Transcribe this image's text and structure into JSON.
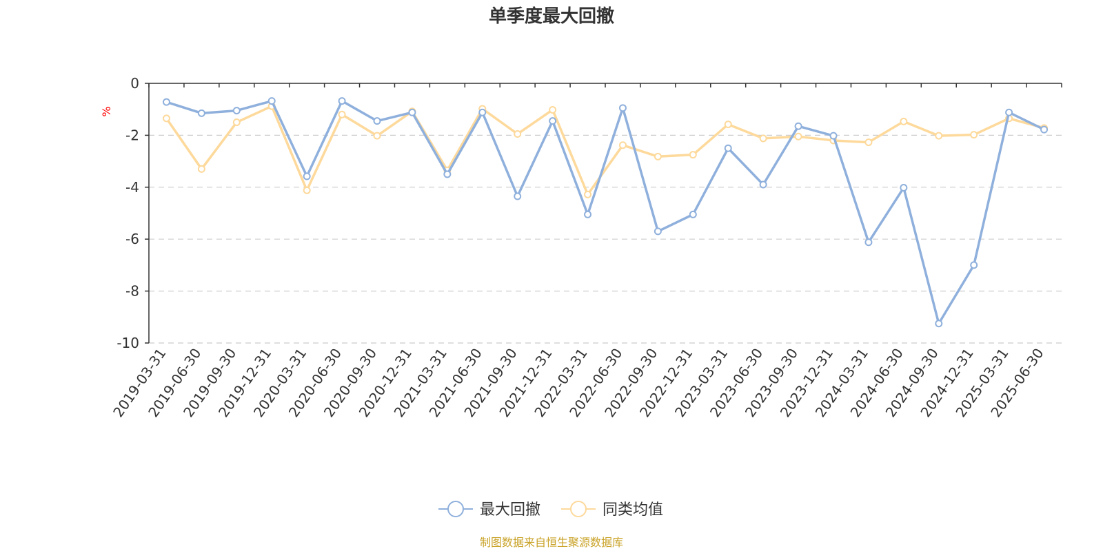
{
  "colors": {
    "series_1": "#8fb0dc",
    "series_2": "#fdd99b",
    "axis": "#333333",
    "grid": "#cccccc",
    "unit": "#ff0000",
    "source": "#c9a227"
  },
  "chart_data": {
    "type": "line",
    "title": "单季度最大回撤",
    "ylabel": "%",
    "xlabel": "",
    "ylim": [
      -10,
      0
    ],
    "yticks": [
      0,
      -2,
      -4,
      -6,
      -8,
      -10
    ],
    "grid": true,
    "legend_position": "bottom",
    "categories": [
      "2019-03-31",
      "2019-06-30",
      "2019-09-30",
      "2019-12-31",
      "2020-03-31",
      "2020-06-30",
      "2020-09-30",
      "2020-12-31",
      "2021-03-31",
      "2021-06-30",
      "2021-09-30",
      "2021-12-31",
      "2022-03-31",
      "2022-06-30",
      "2022-09-30",
      "2022-12-31",
      "2023-03-31",
      "2023-06-30",
      "2023-09-30",
      "2023-12-31",
      "2024-03-31",
      "2024-06-30",
      "2024-09-30",
      "2024-12-31",
      "2025-03-31",
      "2025-06-30"
    ],
    "series": [
      {
        "name": "最大回撤",
        "color": "#8fb0dc",
        "values": [
          -0.72,
          -1.15,
          -1.05,
          -0.68,
          -3.58,
          -0.68,
          -1.45,
          -1.12,
          -3.5,
          -1.12,
          -4.35,
          -1.45,
          -5.05,
          -0.95,
          -5.7,
          -5.05,
          -2.5,
          -3.9,
          -1.65,
          -2.02,
          -6.12,
          -4.02,
          -9.25,
          -7.0,
          -1.12,
          -1.78
        ]
      },
      {
        "name": "同类均值",
        "color": "#fdd99b",
        "values": [
          -1.35,
          -3.3,
          -1.5,
          -0.88,
          -4.12,
          -1.2,
          -2.02,
          -1.08,
          -3.35,
          -0.98,
          -1.95,
          -1.02,
          -4.28,
          -2.38,
          -2.82,
          -2.75,
          -1.58,
          -2.12,
          -2.05,
          -2.2,
          -2.27,
          -1.47,
          -2.02,
          -1.98,
          -1.35,
          -1.72
        ]
      }
    ]
  },
  "legend": [
    {
      "label": "最大回撤",
      "color": "#8fb0dc"
    },
    {
      "label": "同类均值",
      "color": "#fdd99b"
    }
  ],
  "source_text": "制图数据来自恒生聚源数据库"
}
